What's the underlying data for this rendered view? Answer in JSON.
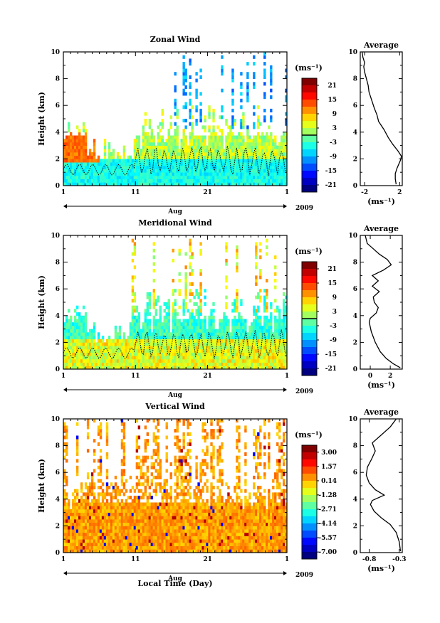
{
  "chart_data": [
    {
      "type": "heatmap",
      "title": "Zonal Wind",
      "xlabel": "Aug",
      "ylabel": "Height (km)",
      "year": "2009",
      "xticks": [
        "1",
        "11",
        "21",
        "1"
      ],
      "yticks": [
        "0",
        "2",
        "4",
        "6",
        "8",
        "10"
      ],
      "ylim": [
        0,
        10
      ],
      "colorbar": {
        "unit": "(ms⁻¹)",
        "ticks": [
          "21",
          "15",
          "9",
          "3",
          "-3",
          "-9",
          "-15",
          "-21"
        ],
        "range": [
          -24,
          24
        ]
      },
      "average": {
        "title": "Average",
        "xticks": [
          "-2",
          "2"
        ],
        "xlim": [
          -2.5,
          2.3
        ],
        "xunit": "(ms⁻¹)",
        "profile": [
          [
            1.6,
            0.1
          ],
          [
            1.5,
            0.5
          ],
          [
            1.5,
            0.9
          ],
          [
            1.7,
            1.3
          ],
          [
            2.1,
            1.9
          ],
          [
            2.2,
            2.2
          ],
          [
            1.8,
            2.6
          ],
          [
            1.2,
            3.1
          ],
          [
            0.7,
            3.6
          ],
          [
            0.2,
            4.2
          ],
          [
            -0.4,
            4.8
          ],
          [
            -0.6,
            5.3
          ],
          [
            -0.9,
            5.8
          ],
          [
            -1.2,
            6.4
          ],
          [
            -1.5,
            7.0
          ],
          [
            -1.6,
            7.5
          ],
          [
            -1.8,
            8.0
          ],
          [
            -2.0,
            8.5
          ],
          [
            -2.1,
            8.9
          ],
          [
            -2.0,
            9.2
          ],
          [
            -2.2,
            9.6
          ],
          [
            -2.3,
            10.0
          ]
        ]
      }
    },
    {
      "type": "heatmap",
      "title": "Meridional Wind",
      "xlabel": "Aug",
      "ylabel": "Height (km)",
      "year": "2009",
      "xticks": [
        "1",
        "11",
        "21",
        "1"
      ],
      "yticks": [
        "0",
        "2",
        "4",
        "6",
        "8",
        "10"
      ],
      "ylim": [
        0,
        10
      ],
      "colorbar": {
        "unit": "(ms⁻¹)",
        "ticks": [
          "21",
          "15",
          "9",
          "3",
          "-3",
          "-9",
          "-15",
          "-21"
        ],
        "range": [
          -24,
          24
        ]
      },
      "average": {
        "title": "Average",
        "xticks": [
          "0",
          "2"
        ],
        "xlim": [
          -1,
          3.2
        ],
        "xunit": "(ms⁻¹)",
        "profile": [
          [
            3.0,
            0.1
          ],
          [
            2.3,
            0.4
          ],
          [
            1.6,
            0.8
          ],
          [
            1.0,
            1.3
          ],
          [
            0.5,
            2.0
          ],
          [
            0.1,
            2.8
          ],
          [
            -0.1,
            3.5
          ],
          [
            0.0,
            3.8
          ],
          [
            0.6,
            4.2
          ],
          [
            0.8,
            4.6
          ],
          [
            0.4,
            5.0
          ],
          [
            0.3,
            5.4
          ],
          [
            0.9,
            5.8
          ],
          [
            0.2,
            6.2
          ],
          [
            0.8,
            6.6
          ],
          [
            0.2,
            7.0
          ],
          [
            1.3,
            7.4
          ],
          [
            2.1,
            7.8
          ],
          [
            1.7,
            8.2
          ],
          [
            0.9,
            8.6
          ],
          [
            0.3,
            9.0
          ],
          [
            -0.3,
            9.4
          ],
          [
            -0.5,
            10.0
          ]
        ]
      }
    },
    {
      "type": "heatmap",
      "title": "Vertical Wind",
      "xlabel": "Aug",
      "ylabel": "Height (km)",
      "year": "2009",
      "xticks": [
        "1",
        "11",
        "21",
        "1"
      ],
      "yticks": [
        "0",
        "2",
        "4",
        "6",
        "8",
        "10"
      ],
      "ylim": [
        0,
        10
      ],
      "colorbar": {
        "unit": "(ms⁻¹)",
        "ticks": [
          "3.00",
          "1.57",
          "0.14",
          "-1.28",
          "-2.71",
          "-4.14",
          "-5.57",
          "-7.00"
        ],
        "range": [
          -7.7,
          3.7
        ]
      },
      "average": {
        "title": "Average",
        "xticks": [
          "-0.8",
          "-0.3"
        ],
        "xlim": [
          -0.95,
          -0.25
        ],
        "xunit": "(ms⁻¹)",
        "profile": [
          [
            -0.28,
            0.1
          ],
          [
            -0.3,
            0.8
          ],
          [
            -0.35,
            1.5
          ],
          [
            -0.45,
            2.1
          ],
          [
            -0.6,
            2.6
          ],
          [
            -0.72,
            3.1
          ],
          [
            -0.78,
            3.6
          ],
          [
            -0.75,
            3.9
          ],
          [
            -0.55,
            4.3
          ],
          [
            -0.7,
            4.7
          ],
          [
            -0.8,
            5.2
          ],
          [
            -0.85,
            5.8
          ],
          [
            -0.83,
            6.4
          ],
          [
            -0.76,
            7.0
          ],
          [
            -0.7,
            7.6
          ],
          [
            -0.75,
            8.2
          ],
          [
            -0.6,
            8.8
          ],
          [
            -0.45,
            9.4
          ],
          [
            -0.35,
            10.0
          ]
        ]
      }
    }
  ],
  "footer": {
    "xlabel": "Local Time (Day)"
  }
}
